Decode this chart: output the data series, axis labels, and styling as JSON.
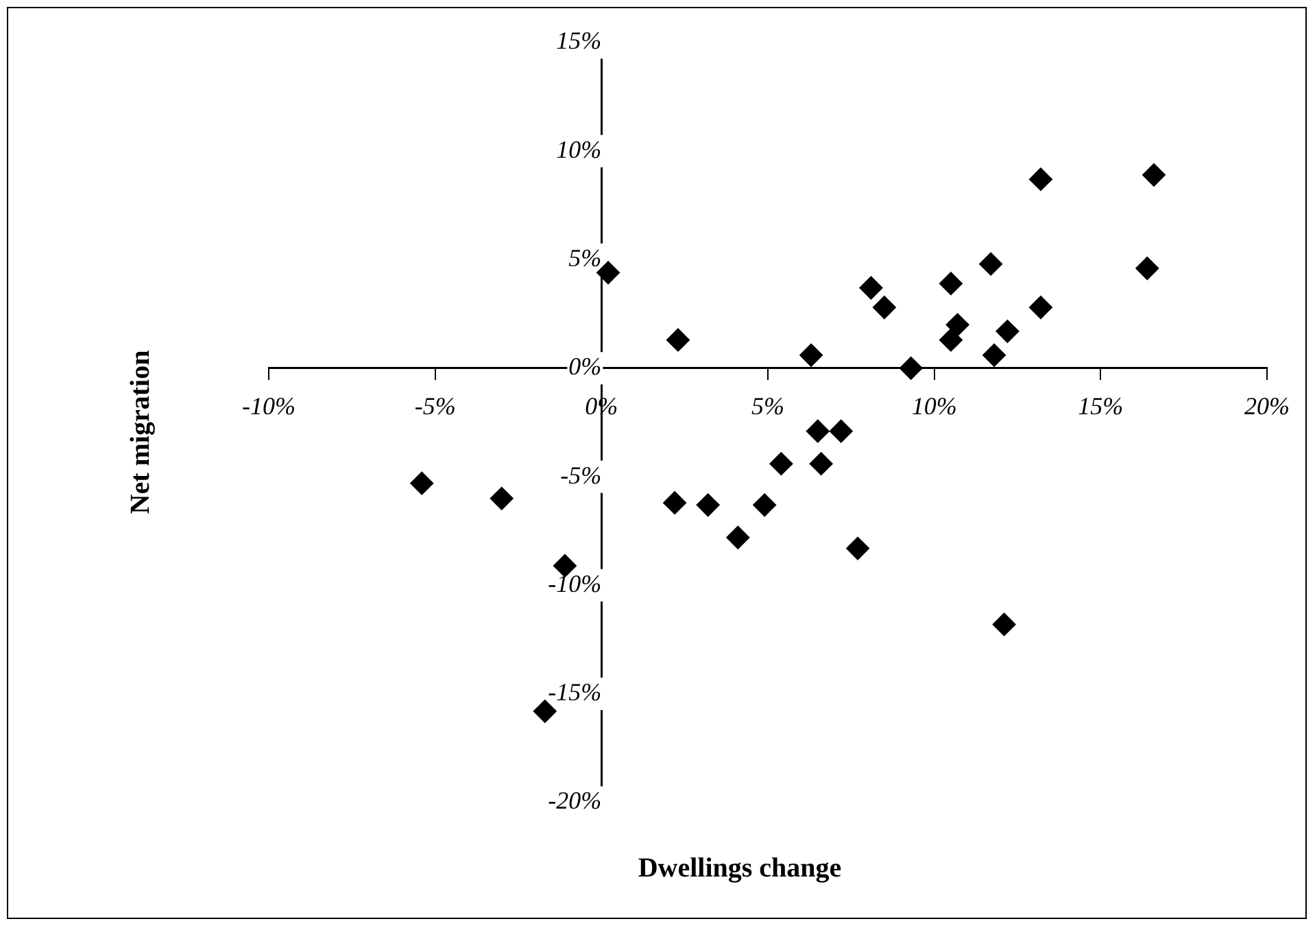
{
  "chart_data": {
    "type": "scatter",
    "xlabel": "Dwellings change",
    "ylabel": "Net migration",
    "marker": "diamond",
    "legend": false,
    "grid": false,
    "xlim": [
      -10,
      20
    ],
    "ylim": [
      -20,
      15
    ],
    "xticks": [
      {
        "value": -10,
        "label": "-10%"
      },
      {
        "value": -5,
        "label": "-5%"
      },
      {
        "value": 0,
        "label": "0%"
      },
      {
        "value": 5,
        "label": "5%"
      },
      {
        "value": 10,
        "label": "10%"
      },
      {
        "value": 15,
        "label": "15%"
      },
      {
        "value": 20,
        "label": "20%"
      }
    ],
    "yticks": [
      {
        "value": -20,
        "label": "-20%"
      },
      {
        "value": -15,
        "label": "-15%"
      },
      {
        "value": -10,
        "label": "-10%"
      },
      {
        "value": -5,
        "label": "-5%"
      },
      {
        "value": 0,
        "label": "0%"
      },
      {
        "value": 5,
        "label": "5%"
      },
      {
        "value": 10,
        "label": "10%"
      },
      {
        "value": 15,
        "label": "15%"
      }
    ],
    "series": [
      {
        "color": "#000000",
        "x": [
          0.2,
          2.3,
          6.3,
          8.1,
          8.5,
          9.3,
          10.5,
          10.7,
          10.5,
          11.7,
          11.8,
          12.2,
          13.2,
          13.2,
          16.4,
          16.6,
          -5.4,
          -3.0,
          -1.1,
          -1.7,
          2.2,
          3.2,
          4.1,
          4.9,
          5.4,
          6.5,
          6.6,
          7.2,
          7.7,
          12.1
        ],
        "values": [
          4.4,
          1.3,
          0.6,
          3.7,
          2.8,
          0.0,
          3.9,
          2.0,
          1.3,
          4.8,
          0.6,
          1.7,
          2.8,
          8.7,
          4.6,
          8.9,
          -5.3,
          -6.0,
          -9.1,
          -15.8,
          -6.2,
          -6.3,
          -7.8,
          -6.3,
          -4.4,
          -2.9,
          -4.4,
          -2.9,
          -8.3,
          -11.8
        ]
      }
    ]
  }
}
